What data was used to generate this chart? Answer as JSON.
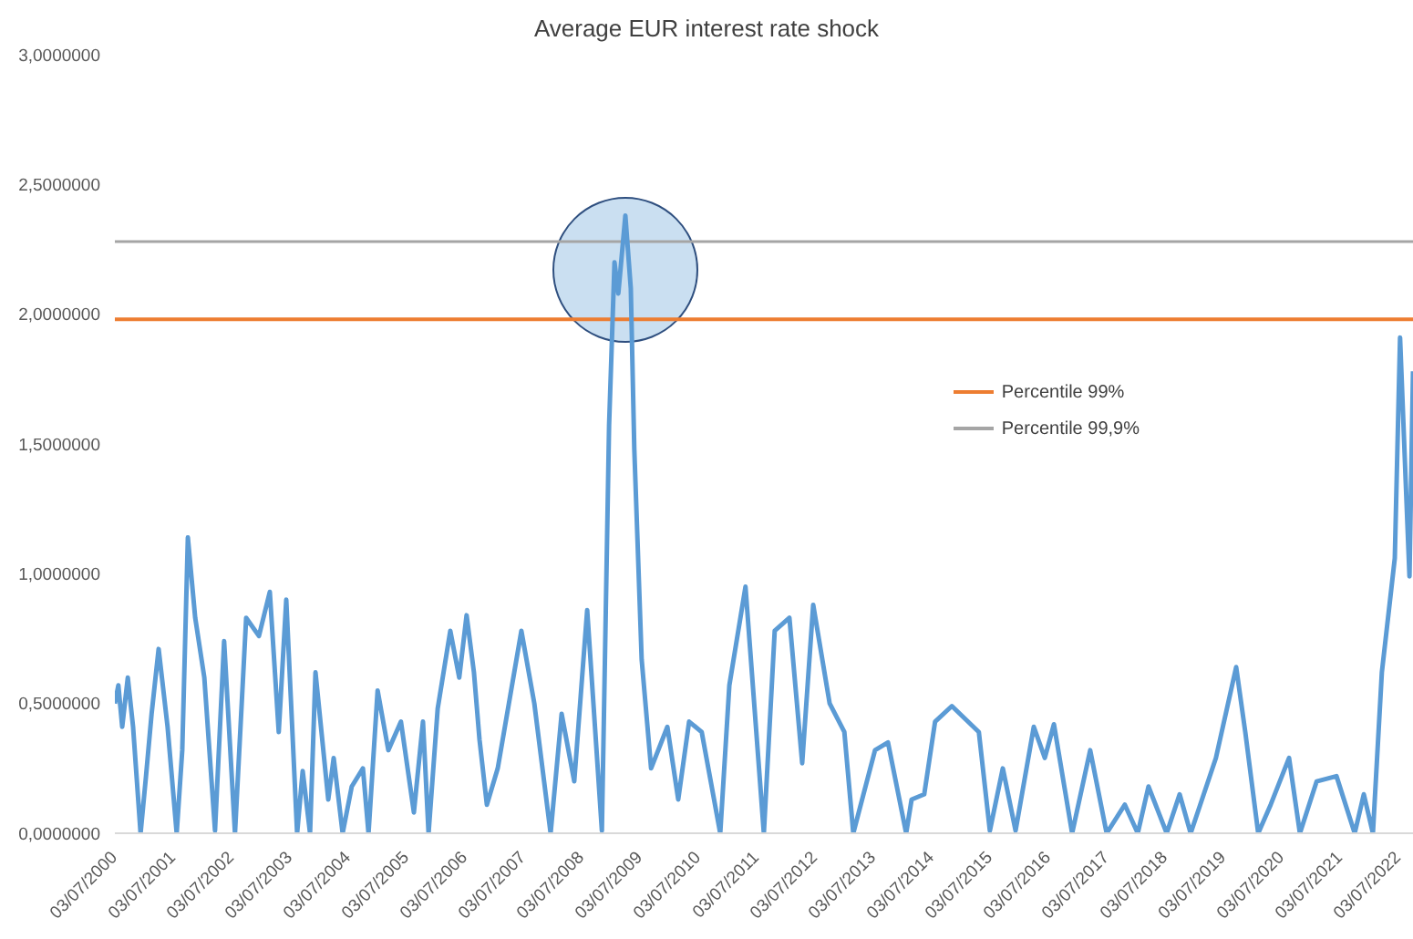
{
  "chart_data": {
    "type": "line",
    "title": "Average EUR interest rate shock",
    "x": [
      "2000-07-03",
      "2000-07-25",
      "2000-08-18",
      "2000-09-22",
      "2000-10-25",
      "2000-12-11",
      "2001-01-14",
      "2001-02-18",
      "2001-04-03",
      "2001-05-29",
      "2001-07-25",
      "2001-08-29",
      "2001-10-03",
      "2001-11-18",
      "2002-01-14",
      "2002-03-22",
      "2002-05-18",
      "2002-07-25",
      "2002-10-03",
      "2002-12-22",
      "2003-02-28",
      "2003-04-25",
      "2003-06-11",
      "2003-08-18",
      "2003-09-22",
      "2003-11-07",
      "2003-12-11",
      "2004-02-29",
      "2004-04-03",
      "2004-05-29",
      "2004-07-25",
      "2004-10-03",
      "2004-11-07",
      "2005-01-03",
      "2005-03-11",
      "2005-05-29",
      "2005-08-18",
      "2005-10-14",
      "2005-11-18",
      "2006-01-14",
      "2006-04-03",
      "2006-05-29",
      "2006-07-14",
      "2006-08-29",
      "2006-10-03",
      "2006-11-18",
      "2007-01-25",
      "2007-06-22",
      "2007-09-11",
      "2007-12-22",
      "2008-02-29",
      "2008-05-18",
      "2008-08-07",
      "2008-11-07",
      "2008-12-22",
      "2009-01-25",
      "2009-02-18",
      "2009-04-03",
      "2009-05-07",
      "2009-05-29",
      "2009-07-14",
      "2009-09-11",
      "2009-12-22",
      "2010-02-28",
      "2010-05-07",
      "2010-07-25",
      "2010-11-18",
      "2011-01-14",
      "2011-04-25",
      "2011-08-18",
      "2011-10-25",
      "2012-01-25",
      "2012-04-14",
      "2012-06-22",
      "2012-10-03",
      "2013-01-03",
      "2013-02-28",
      "2013-07-14",
      "2013-10-03",
      "2014-01-25",
      "2014-02-28",
      "2014-05-18",
      "2014-07-25",
      "2014-11-07",
      "2015-04-25",
      "2015-07-03",
      "2015-09-22",
      "2015-12-11",
      "2016-04-03",
      "2016-06-11",
      "2016-08-07",
      "2016-11-29",
      "2017-03-22",
      "2017-07-03",
      "2017-10-25",
      "2018-01-14",
      "2018-03-22",
      "2018-07-14",
      "2018-10-03",
      "2018-12-11",
      "2019-05-18",
      "2019-09-22",
      "2019-11-18",
      "2020-02-07",
      "2020-04-25",
      "2020-08-18",
      "2020-10-25",
      "2021-02-07",
      "2021-06-11",
      "2021-10-03",
      "2021-11-29",
      "2022-01-25",
      "2022-03-22",
      "2022-06-11",
      "2022-07-14",
      "2022-08-18",
      "2022-09-11",
      "2022-10-03"
    ],
    "series": [
      {
        "color": "#5b9bd5",
        "values": [
          0.5,
          0.57,
          0.41,
          0.6,
          0.41,
          0.0,
          0.22,
          0.46,
          0.71,
          0.41,
          0.0,
          0.32,
          1.14,
          0.83,
          0.6,
          0.01,
          0.74,
          0.0,
          0.83,
          0.76,
          0.93,
          0.39,
          0.9,
          0.0,
          0.24,
          0.0,
          0.62,
          0.13,
          0.29,
          0.0,
          0.18,
          0.25,
          0.0,
          0.55,
          0.32,
          0.43,
          0.08,
          0.43,
          0.0,
          0.48,
          0.78,
          0.6,
          0.84,
          0.62,
          0.36,
          0.11,
          0.25,
          0.78,
          0.5,
          0.0,
          0.46,
          0.2,
          0.86,
          0.01,
          1.57,
          2.2,
          2.08,
          2.38,
          2.1,
          1.48,
          0.67,
          0.25,
          0.41,
          0.13,
          0.43,
          0.39,
          0.0,
          0.57,
          0.95,
          0.0,
          0.78,
          0.83,
          0.27,
          0.88,
          0.5,
          0.39,
          0.0,
          0.32,
          0.35,
          0.0,
          0.13,
          0.15,
          0.43,
          0.49,
          0.39,
          0.01,
          0.25,
          0.01,
          0.41,
          0.29,
          0.42,
          0.0,
          0.32,
          0.0,
          0.11,
          0.0,
          0.18,
          0.0,
          0.15,
          0.0,
          0.29,
          0.64,
          0.39,
          0.0,
          0.11,
          0.29,
          0.0,
          0.2,
          0.22,
          0.0,
          0.15,
          0.0,
          0.62,
          1.06,
          1.91,
          1.36,
          0.99,
          1.78
        ]
      }
    ],
    "xlim": [
      "2000-07-03",
      "2022-10-03"
    ],
    "xticks": [
      {
        "value": "2000-07-03",
        "label": "03/07/2000"
      },
      {
        "value": "2001-07-03",
        "label": "03/07/2001"
      },
      {
        "value": "2002-07-03",
        "label": "03/07/2002"
      },
      {
        "value": "2003-07-03",
        "label": "03/07/2003"
      },
      {
        "value": "2004-07-03",
        "label": "03/07/2004"
      },
      {
        "value": "2005-07-03",
        "label": "03/07/2005"
      },
      {
        "value": "2006-07-03",
        "label": "03/07/2006"
      },
      {
        "value": "2007-07-03",
        "label": "03/07/2007"
      },
      {
        "value": "2008-07-03",
        "label": "03/07/2008"
      },
      {
        "value": "2009-07-03",
        "label": "03/07/2009"
      },
      {
        "value": "2010-07-03",
        "label": "03/07/2010"
      },
      {
        "value": "2011-07-03",
        "label": "03/07/2011"
      },
      {
        "value": "2012-07-03",
        "label": "03/07/2012"
      },
      {
        "value": "2013-07-03",
        "label": "03/07/2013"
      },
      {
        "value": "2014-07-03",
        "label": "03/07/2014"
      },
      {
        "value": "2015-07-03",
        "label": "03/07/2015"
      },
      {
        "value": "2016-07-03",
        "label": "03/07/2016"
      },
      {
        "value": "2017-07-03",
        "label": "03/07/2017"
      },
      {
        "value": "2018-07-03",
        "label": "03/07/2018"
      },
      {
        "value": "2019-07-03",
        "label": "03/07/2019"
      },
      {
        "value": "2020-07-03",
        "label": "03/07/2020"
      },
      {
        "value": "2021-07-03",
        "label": "03/07/2021"
      },
      {
        "value": "2022-07-03",
        "label": "03/07/2022"
      }
    ],
    "ylim": [
      0,
      3
    ],
    "yticks": [
      {
        "value": 0,
        "label": "0,0000000"
      },
      {
        "value": 0.5,
        "label": "0,5000000"
      },
      {
        "value": 1,
        "label": "1,0000000"
      },
      {
        "value": 1.5,
        "label": "1,5000000"
      },
      {
        "value": 2,
        "label": "2,0000000"
      },
      {
        "value": 2.5,
        "label": "2,5000000"
      },
      {
        "value": 3,
        "label": "3,0000000"
      }
    ],
    "ref_lines": [
      {
        "axis": "y",
        "value": 1.98,
        "label": "Percentile 99%",
        "color": "#ed7d31"
      },
      {
        "axis": "y",
        "value": 2.28,
        "label": "Percentile 99,9%",
        "color": "#a5a5a5"
      }
    ],
    "legend": "right",
    "grid": false,
    "marker": "none",
    "line_style": "solid"
  }
}
